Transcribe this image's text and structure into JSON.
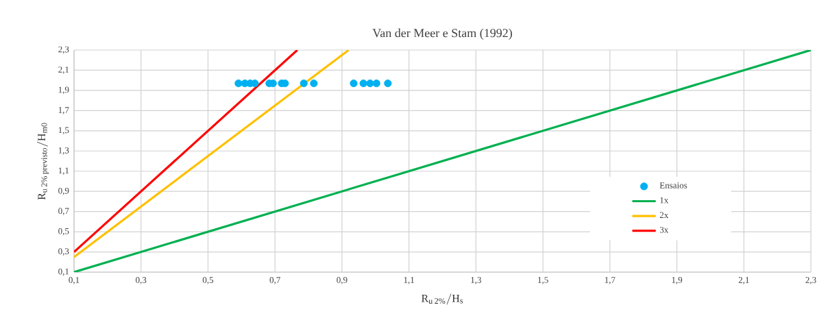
{
  "chart_data": {
    "type": "scatter",
    "title": "Van der Meer e Stam (1992)",
    "xlabel": "\\mathrm{R}_{\\mathrm{u\\,2\\%}}/\\mathrm{H}_{\\mathrm{s}}",
    "ylabel": "\\mathrm{R}_{\\mathrm{u\\,2\\%\\,previsto}}/\\mathrm{H}_{\\mathrm{m0}}",
    "xlim": [
      0.1,
      2.3
    ],
    "ylim": [
      0.1,
      2.3
    ],
    "xticks": [
      {
        "value": 0.1,
        "label": "0,1"
      },
      {
        "value": 0.3,
        "label": "0,3"
      },
      {
        "value": 0.5,
        "label": "0,5"
      },
      {
        "value": 0.7,
        "label": "0,7"
      },
      {
        "value": 0.9,
        "label": "0,9"
      },
      {
        "value": 1.1,
        "label": "1,1"
      },
      {
        "value": 1.3,
        "label": "1,3"
      },
      {
        "value": 1.5,
        "label": "1,5"
      },
      {
        "value": 1.7,
        "label": "1,7"
      },
      {
        "value": 1.9,
        "label": "1,9"
      },
      {
        "value": 2.1,
        "label": "2,1"
      },
      {
        "value": 2.3,
        "label": "2,3"
      }
    ],
    "yticks": [
      {
        "value": 0.1,
        "label": "0,1"
      },
      {
        "value": 0.3,
        "label": "0,3"
      },
      {
        "value": 0.5,
        "label": "0,5"
      },
      {
        "value": 0.7,
        "label": "0,7"
      },
      {
        "value": 0.9,
        "label": "0,9"
      },
      {
        "value": 1.1,
        "label": "1,1"
      },
      {
        "value": 1.3,
        "label": "1,3"
      },
      {
        "value": 1.5,
        "label": "1,5"
      },
      {
        "value": 1.7,
        "label": "1,7"
      },
      {
        "value": 1.9,
        "label": "1,9"
      },
      {
        "value": 2.1,
        "label": "2,1"
      },
      {
        "value": 2.3,
        "label": "2,3"
      }
    ],
    "grid": true,
    "legend": "right",
    "series": [
      {
        "name": "Ensaios",
        "marker": "circle",
        "color": "#00b0f0",
        "x": [
          0.591,
          0.61,
          0.626,
          0.64,
          0.683,
          0.694,
          0.72,
          0.73,
          0.786,
          0.816,
          0.935,
          0.964,
          0.984,
          1.003,
          1.037
        ],
        "values": [
          1.97,
          1.97,
          1.97,
          1.97,
          1.97,
          1.97,
          1.97,
          1.97,
          1.97,
          1.97,
          1.97,
          1.97,
          1.97,
          1.97,
          1.97
        ]
      },
      {
        "name": "1x",
        "type": "line",
        "marker": "none",
        "color": "#00b050",
        "x": [
          0.1,
          2.3
        ],
        "values": [
          0.1,
          2.3
        ]
      },
      {
        "name": "2x",
        "type": "line",
        "marker": "none",
        "color": "#ffc000",
        "x": [
          0.1,
          0.92
        ],
        "values": [
          0.25,
          2.3
        ]
      },
      {
        "name": "3x",
        "type": "line",
        "marker": "none",
        "color": "#ff0000",
        "x": [
          0.1,
          0.7667
        ],
        "values": [
          0.3,
          2.3
        ]
      }
    ]
  }
}
